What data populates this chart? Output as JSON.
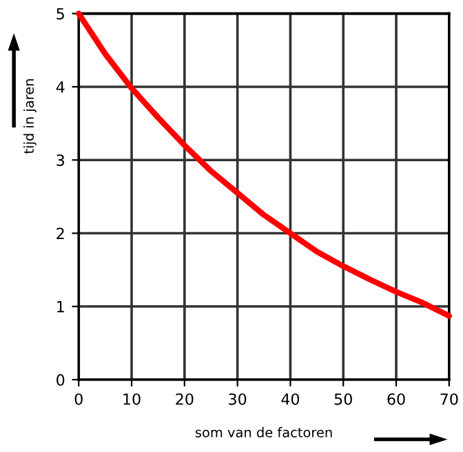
{
  "chart_data": {
    "type": "line",
    "xlabel": "som van de factoren",
    "ylabel": "tijd in jaren",
    "x": [
      0,
      5,
      10,
      15,
      20,
      25,
      30,
      35,
      40,
      45,
      50,
      55,
      60,
      65,
      70
    ],
    "series": [
      {
        "color": "#ff0000",
        "values": [
          5.0,
          4.45,
          3.98,
          3.58,
          3.2,
          2.85,
          2.55,
          2.25,
          2.0,
          1.75,
          1.55,
          1.37,
          1.2,
          1.05,
          0.87
        ]
      }
    ],
    "xlim": [
      0,
      70
    ],
    "ylim": [
      0,
      5
    ],
    "xticks": [
      0,
      10,
      20,
      30,
      40,
      50,
      60,
      70
    ],
    "yticks": [
      0,
      1,
      2,
      3,
      4,
      5
    ],
    "grid": true,
    "marker": "none",
    "line_style": "solid"
  }
}
